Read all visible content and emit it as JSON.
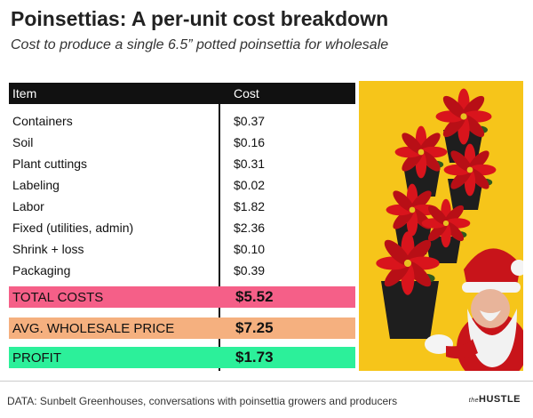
{
  "title": "Poinsettias: A per-unit cost breakdown",
  "subtitle": "Cost to produce a single 6.5” potted poinsettia for wholesale",
  "chart_data": {
    "type": "table",
    "columns": [
      "Item",
      "Cost"
    ],
    "rows": [
      {
        "item": "Containers",
        "cost": "$0.37"
      },
      {
        "item": "Soil",
        "cost": "$0.16"
      },
      {
        "item": "Plant cuttings",
        "cost": "$0.31"
      },
      {
        "item": "Labeling",
        "cost": "$0.02"
      },
      {
        "item": "Labor",
        "cost": "$1.82"
      },
      {
        "item": "Fixed (utilities, admin)",
        "cost": "$2.36"
      },
      {
        "item": "Shrink + loss",
        "cost": "$0.10"
      },
      {
        "item": "Packaging",
        "cost": "$0.39"
      }
    ],
    "summary": [
      {
        "label": "TOTAL COSTS",
        "value": "$5.52",
        "color": "#f55f88"
      },
      {
        "label": "AVG. WHOLESALE PRICE",
        "value": "$7.25",
        "color": "#f5b07f"
      },
      {
        "label": "PROFIT",
        "value": "$1.73",
        "color": "#2cf09a"
      }
    ]
  },
  "source": "DATA: Sunbelt Greenhouses, conversations with poinsettia growers and producers",
  "logo": {
    "small": "the",
    "main": "HUSTLE"
  },
  "photo": {
    "background": "#f6c51a",
    "flower_color": "#d9141c",
    "pot_color": "#1e1e1e"
  }
}
